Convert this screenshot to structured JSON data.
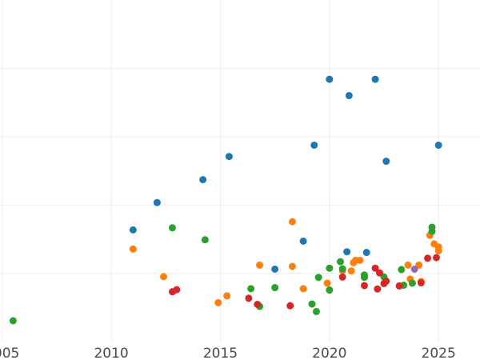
{
  "chart_data": {
    "type": "scatter",
    "title": "",
    "xlabel": "",
    "ylabel": "",
    "xlim": [
      2004.9,
      2026.9
    ],
    "ylim": [
      0,
      100
    ],
    "x_ticks": [
      2005,
      2010,
      2015,
      2020,
      2025
    ],
    "x_tick_labels": [
      "2005",
      "2010",
      "2015",
      "2020",
      "2025"
    ],
    "y_grid_values": [
      20,
      40,
      60,
      80
    ],
    "grid": true,
    "legend": "none",
    "series": [
      {
        "color": "#1f77b4",
        "points": [
          [
            2011.0,
            32.7
          ],
          [
            2012.1,
            40.7
          ],
          [
            2014.2,
            47.4
          ],
          [
            2015.4,
            54.2
          ],
          [
            2019.3,
            57.5
          ],
          [
            2020.0,
            76.8
          ],
          [
            2020.9,
            72.0
          ],
          [
            2022.1,
            76.8
          ],
          [
            2022.6,
            52.8
          ],
          [
            2025.0,
            57.5
          ],
          [
            2017.5,
            21.2
          ],
          [
            2018.8,
            29.4
          ],
          [
            2020.8,
            26.3
          ],
          [
            2021.7,
            26.1
          ]
        ]
      },
      {
        "color": "#ff7f0e",
        "points": [
          [
            2011.0,
            27.1
          ],
          [
            2012.4,
            19.0
          ],
          [
            2014.9,
            11.4
          ],
          [
            2015.3,
            13.4
          ],
          [
            2016.8,
            22.4
          ],
          [
            2018.3,
            35.1
          ],
          [
            2018.3,
            22.0
          ],
          [
            2018.8,
            15.5
          ],
          [
            2019.9,
            17.1
          ],
          [
            2020.6,
            20.8
          ],
          [
            2021.0,
            20.7
          ],
          [
            2021.1,
            23.1
          ],
          [
            2021.2,
            23.8
          ],
          [
            2021.4,
            23.8
          ],
          [
            2023.6,
            22.4
          ],
          [
            2023.7,
            18.3
          ],
          [
            2024.1,
            22.4
          ],
          [
            2024.2,
            17.6
          ],
          [
            2024.6,
            31.1
          ],
          [
            2024.8,
            28.6
          ],
          [
            2025.0,
            27.7
          ],
          [
            2025.0,
            26.6
          ]
        ]
      },
      {
        "color": "#2ca02c",
        "points": [
          [
            2005.5,
            6.1
          ],
          [
            2012.8,
            33.3
          ],
          [
            2014.3,
            29.8
          ],
          [
            2016.4,
            15.5
          ],
          [
            2016.8,
            10.3
          ],
          [
            2017.5,
            15.8
          ],
          [
            2019.2,
            11.0
          ],
          [
            2019.5,
            18.8
          ],
          [
            2019.4,
            8.8
          ],
          [
            2020.0,
            21.5
          ],
          [
            2020.0,
            15.1
          ],
          [
            2020.5,
            23.4
          ],
          [
            2020.6,
            21.3
          ],
          [
            2021.6,
            19.5
          ],
          [
            2021.6,
            18.8
          ],
          [
            2022.5,
            18.9
          ],
          [
            2023.3,
            21.1
          ],
          [
            2023.4,
            16.5
          ],
          [
            2023.8,
            17.1
          ],
          [
            2024.7,
            33.5
          ],
          [
            2024.7,
            32.3
          ]
        ]
      },
      {
        "color": "#d62728",
        "points": [
          [
            2012.8,
            14.6
          ],
          [
            2013.0,
            15.2
          ],
          [
            2016.3,
            12.7
          ],
          [
            2016.7,
            10.9
          ],
          [
            2018.2,
            10.5
          ],
          [
            2020.6,
            18.9
          ],
          [
            2021.6,
            16.4
          ],
          [
            2022.1,
            21.5
          ],
          [
            2022.2,
            15.4
          ],
          [
            2022.3,
            20.1
          ],
          [
            2022.5,
            17.0
          ],
          [
            2022.6,
            17.7
          ],
          [
            2023.2,
            16.3
          ],
          [
            2024.2,
            17.2
          ],
          [
            2024.5,
            24.4
          ],
          [
            2024.9,
            24.6
          ]
        ]
      },
      {
        "color": "#9467bd",
        "points": [
          [
            2023.9,
            21.2
          ]
        ]
      }
    ]
  }
}
